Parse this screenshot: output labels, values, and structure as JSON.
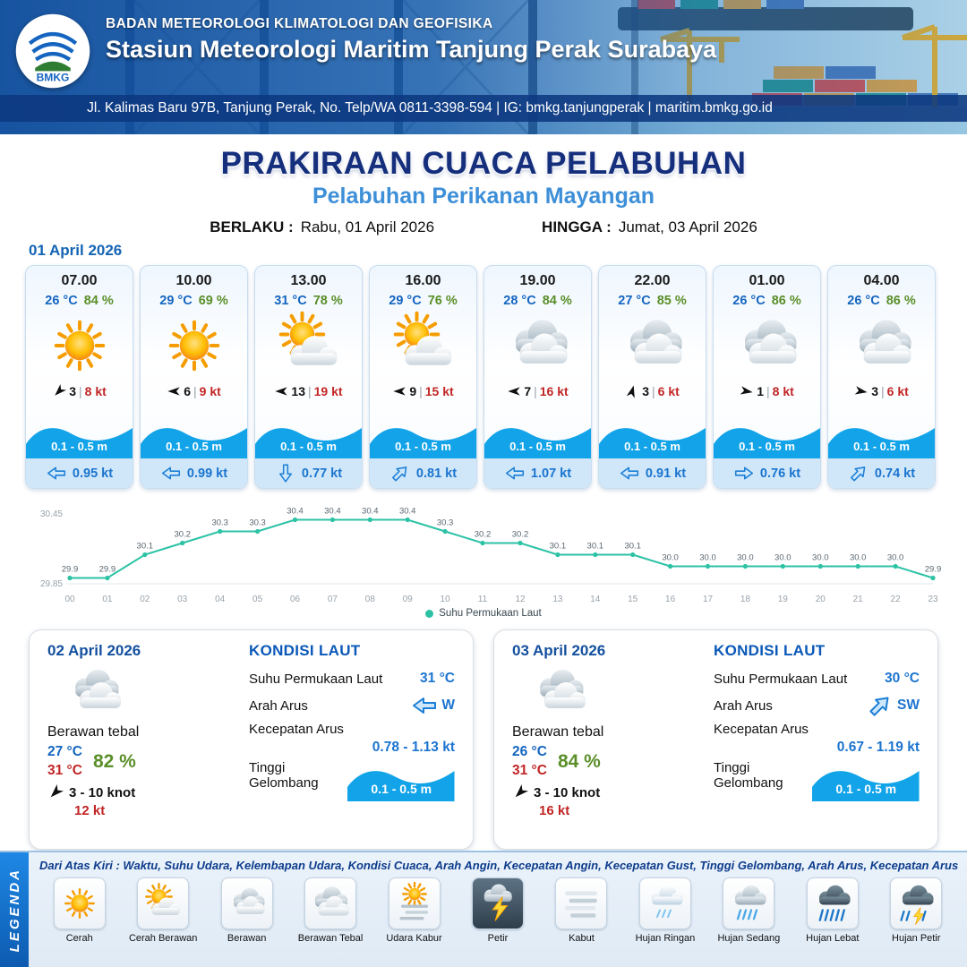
{
  "header": {
    "logo_text": "BMKG",
    "line1": "BADAN METEOROLOGI KLIMATOLOGI DAN GEOFISIKA",
    "line2": "Stasiun Meteorologi Maritim Tanjung Perak Surabaya",
    "line3": "Jl. Kalimas Baru 97B, Tanjung Perak, No. Telp/WA 0811-3398-594 | IG: bmkg.tanjungperak | maritim.bmkg.go.id"
  },
  "title": {
    "main": "PRAKIRAAN CUACA PELABUHAN",
    "sub": "Pelabuhan Perikanan Mayangan",
    "berlaku_label": "BERLAKU :",
    "berlaku_value": "Rabu, 01 April 2026",
    "hingga_label": "HINGGA :",
    "hingga_value": "Jumat, 03 April 2026"
  },
  "forecast": {
    "date": "01 April 2026",
    "cards": [
      {
        "time": "07.00",
        "temp": "26 °C",
        "rh": "84 %",
        "icon": "cerah",
        "wind_rot": 135,
        "wind_speed": "3",
        "gust": "8 kt",
        "wave": "0.1 - 0.5 m",
        "current_rot": 180,
        "current": "0.95 kt"
      },
      {
        "time": "10.00",
        "temp": "29 °C",
        "rh": "69 %",
        "icon": "cerah",
        "wind_rot": 180,
        "wind_speed": "6",
        "gust": "9 kt",
        "wave": "0.1 - 0.5 m",
        "current_rot": 180,
        "current": "0.99 kt"
      },
      {
        "time": "13.00",
        "temp": "31 °C",
        "rh": "78 %",
        "icon": "cerah-berawan",
        "wind_rot": 180,
        "wind_speed": "13",
        "gust": "19 kt",
        "wave": "0.1 - 0.5 m",
        "current_rot": 90,
        "current": "0.77 kt"
      },
      {
        "time": "16.00",
        "temp": "29 °C",
        "rh": "76 %",
        "icon": "cerah-berawan",
        "wind_rot": 180,
        "wind_speed": "9",
        "gust": "15 kt",
        "wave": "0.1 - 0.5 m",
        "current_rot": -45,
        "current": "0.81 kt"
      },
      {
        "time": "19.00",
        "temp": "28 °C",
        "rh": "84 %",
        "icon": "berawan",
        "wind_rot": 180,
        "wind_speed": "7",
        "gust": "16 kt",
        "wave": "0.1 - 0.5 m",
        "current_rot": 180,
        "current": "1.07 kt"
      },
      {
        "time": "22.00",
        "temp": "27 °C",
        "rh": "85 %",
        "icon": "berawan",
        "wind_rot": -75,
        "wind_speed": "3",
        "gust": "6 kt",
        "wave": "0.1 - 0.5 m",
        "current_rot": 180,
        "current": "0.91 kt"
      },
      {
        "time": "01.00",
        "temp": "26 °C",
        "rh": "86 %",
        "icon": "berawan",
        "wind_rot": 10,
        "wind_speed": "1",
        "gust": "8 kt",
        "wave": "0.1 - 0.5 m",
        "current_rot": 0,
        "current": "0.76 kt"
      },
      {
        "time": "04.00",
        "temp": "26 °C",
        "rh": "86 %",
        "icon": "berawan",
        "wind_rot": 10,
        "wind_speed": "3",
        "gust": "6 kt",
        "wave": "0.1 - 0.5 m",
        "current_rot": -45,
        "current": "0.74 kt"
      }
    ]
  },
  "chart_data": {
    "type": "line",
    "title": "Suhu Permukaan Laut",
    "series_label": "Suhu Permukaan Laut",
    "x_labels": [
      "00",
      "01",
      "02",
      "03",
      "04",
      "05",
      "06",
      "07",
      "08",
      "09",
      "10",
      "11",
      "12",
      "13",
      "14",
      "15",
      "16",
      "17",
      "18",
      "19",
      "20",
      "21",
      "22",
      "23"
    ],
    "values": [
      29.9,
      29.9,
      30.1,
      30.2,
      30.3,
      30.3,
      30.4,
      30.4,
      30.4,
      30.4,
      30.3,
      30.2,
      30.2,
      30.1,
      30.1,
      30.1,
      30.0,
      30.0,
      30.0,
      30.0,
      30.0,
      30.0,
      30.0,
      29.9
    ],
    "ymin": 29.85,
    "ymax": 30.45,
    "ymin_label": "29.85",
    "ymax_label": "30.45",
    "line_color": "#2cc2a5",
    "legend_position": "bottom",
    "grid": false
  },
  "days": [
    {
      "date": "02 April 2026",
      "icon": "berawan-tebal",
      "condition": "Berawan tebal",
      "temp_min": "27 °C",
      "rh": "82 %",
      "temp_max": "31 °C",
      "wind_rot": 135,
      "wind_range": "3 - 10 knot",
      "gust": "12 kt",
      "sea_title": "KONDISI LAUT",
      "sst_label": "Suhu Permukaan Laut",
      "sst": "31 °C",
      "arus_label": "Arah Arus",
      "arus_dir": "W",
      "arus_rot": 180,
      "kec_label": "Kecepatan Arus",
      "kec": "0.78 - 1.13 kt",
      "gel_label": "Tinggi Gelombang",
      "gel": "0.1 - 0.5 m"
    },
    {
      "date": "03 April 2026",
      "icon": "berawan-tebal",
      "condition": "Berawan tebal",
      "temp_min": "26 °C",
      "rh": "84 %",
      "temp_max": "31 °C",
      "wind_rot": 135,
      "wind_range": "3 - 10 knot",
      "gust": "16 kt",
      "sea_title": "KONDISI LAUT",
      "sst_label": "Suhu Permukaan Laut",
      "sst": "30 °C",
      "arus_label": "Arah Arus",
      "arus_dir": "SW",
      "arus_rot": -45,
      "kec_label": "Kecepatan Arus",
      "kec": "0.67 - 1.19 kt",
      "gel_label": "Tinggi Gelombang",
      "gel": "0.1 - 0.5 m"
    }
  ],
  "legend": {
    "title": "LEGENDA",
    "description": "Dari Atas Kiri : Waktu, Suhu Udara, Kelembapan Udara, Kondisi Cuaca, Arah Angin, Kecepatan Angin, Kecepatan Gust, Tinggi Gelombang, Arah Arus, Kecepatan Arus",
    "items": [
      {
        "label": "Cerah",
        "icon": "cerah",
        "dark_tile": false
      },
      {
        "label": "Cerah Berawan",
        "icon": "cerah-berawan",
        "dark_tile": false
      },
      {
        "label": "Berawan",
        "icon": "berawan",
        "dark_tile": false
      },
      {
        "label": "Berawan Tebal",
        "icon": "berawan-tebal",
        "dark_tile": false
      },
      {
        "label": "Udara Kabur",
        "icon": "udara-kabur",
        "dark_tile": false
      },
      {
        "label": "Petir",
        "icon": "petir",
        "dark_tile": true
      },
      {
        "label": "Kabut",
        "icon": "kabut",
        "dark_tile": false
      },
      {
        "label": "Hujan Ringan",
        "icon": "hujan-ringan",
        "dark_tile": false
      },
      {
        "label": "Hujan Sedang",
        "icon": "hujan-sedang",
        "dark_tile": false
      },
      {
        "label": "Hujan Lebat",
        "icon": "hujan-lebat",
        "dark_tile": false
      },
      {
        "label": "Hujan Petir",
        "icon": "hujan-petir",
        "dark_tile": false
      }
    ]
  },
  "colors": {
    "header_blue": "#1054a0",
    "title_navy": "#152f7d",
    "subtitle_blue": "#3d8fd8",
    "temp_blue": "#1565c0",
    "humidity_green": "#5a8f29",
    "gust_red": "#c22525",
    "wave_blue": "#12a3e9",
    "current_blue": "#1b74cf",
    "chart_line": "#2cc2a5"
  }
}
